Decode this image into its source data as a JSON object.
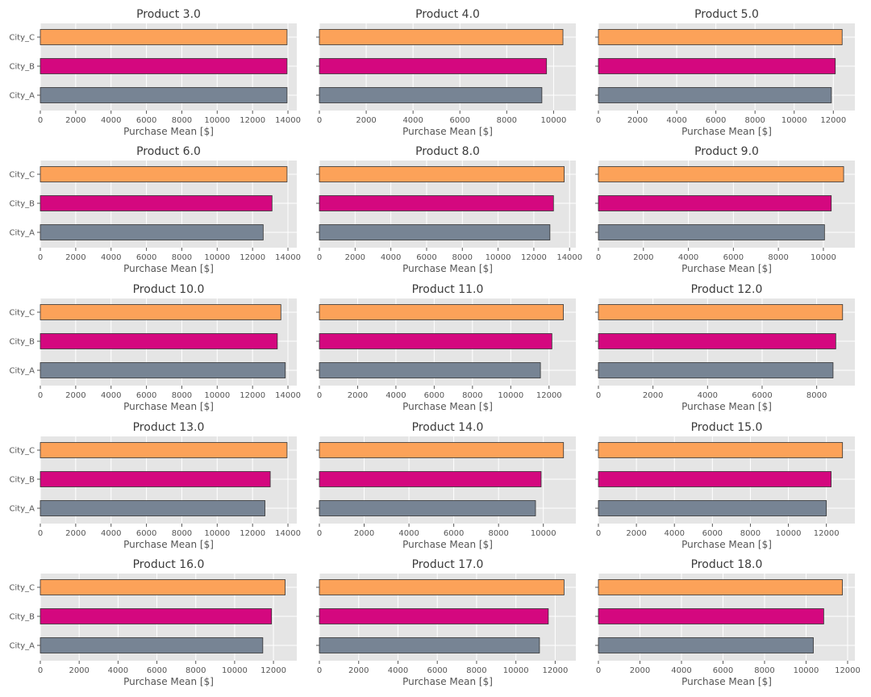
{
  "figure": {
    "xlabel": "Purchase Mean [$]",
    "categories": [
      "City_A",
      "City_B",
      "City_C"
    ],
    "category_colors": {
      "City_A": "#778494",
      "City_B": "#d4087f",
      "City_C": "#fca259"
    },
    "background": "#e5e5e5",
    "grid": true
  },
  "chart_data": [
    {
      "type": "bar",
      "orientation": "horizontal",
      "title": "Product 3.0",
      "xlabel": "Purchase Mean [$]",
      "categories": [
        "City_A",
        "City_B",
        "City_C"
      ],
      "values": [
        13950,
        13950,
        13950
      ],
      "xlim": [
        0,
        14500
      ],
      "xticks": [
        0,
        2000,
        4000,
        6000,
        8000,
        10000,
        12000,
        14000
      ]
    },
    {
      "type": "bar",
      "orientation": "horizontal",
      "title": "Product 4.0",
      "xlabel": "Purchase Mean [$]",
      "categories": [
        "City_A",
        "City_B",
        "City_C"
      ],
      "values": [
        9500,
        9700,
        10400
      ],
      "xlim": [
        0,
        10950
      ],
      "xticks": [
        0,
        2000,
        4000,
        6000,
        8000,
        10000
      ]
    },
    {
      "type": "bar",
      "orientation": "horizontal",
      "title": "Product 5.0",
      "xlabel": "Purchase Mean [$]",
      "categories": [
        "City_A",
        "City_B",
        "City_C"
      ],
      "values": [
        11900,
        12100,
        12450
      ],
      "xlim": [
        0,
        13100
      ],
      "xticks": [
        0,
        2000,
        4000,
        6000,
        8000,
        10000,
        12000
      ]
    },
    {
      "type": "bar",
      "orientation": "horizontal",
      "title": "Product 6.0",
      "xlabel": "Purchase Mean [$]",
      "categories": [
        "City_A",
        "City_B",
        "City_C"
      ],
      "values": [
        12600,
        13100,
        13950
      ],
      "xlim": [
        0,
        14500
      ],
      "xticks": [
        0,
        2000,
        4000,
        6000,
        8000,
        10000,
        12000,
        14000
      ]
    },
    {
      "type": "bar",
      "orientation": "horizontal",
      "title": "Product 8.0",
      "xlabel": "Purchase Mean [$]",
      "categories": [
        "City_A",
        "City_B",
        "City_C"
      ],
      "values": [
        12900,
        13100,
        13700
      ],
      "xlim": [
        0,
        14350
      ],
      "xticks": [
        0,
        2000,
        4000,
        6000,
        8000,
        10000,
        12000,
        14000
      ]
    },
    {
      "type": "bar",
      "orientation": "horizontal",
      "title": "Product 9.0",
      "xlabel": "Purchase Mean [$]",
      "categories": [
        "City_A",
        "City_B",
        "City_C"
      ],
      "values": [
        10050,
        10350,
        10900
      ],
      "xlim": [
        0,
        11400
      ],
      "xticks": [
        0,
        2000,
        4000,
        6000,
        8000,
        10000
      ]
    },
    {
      "type": "bar",
      "orientation": "horizontal",
      "title": "Product 10.0",
      "xlabel": "Purchase Mean [$]",
      "categories": [
        "City_A",
        "City_B",
        "City_C"
      ],
      "values": [
        13850,
        13400,
        13600
      ],
      "xlim": [
        0,
        14500
      ],
      "xticks": [
        0,
        2000,
        4000,
        6000,
        8000,
        10000,
        12000,
        14000
      ]
    },
    {
      "type": "bar",
      "orientation": "horizontal",
      "title": "Product 11.0",
      "xlabel": "Purchase Mean [$]",
      "categories": [
        "City_A",
        "City_B",
        "City_C"
      ],
      "values": [
        11550,
        12150,
        12750
      ],
      "xlim": [
        0,
        13400
      ],
      "xticks": [
        0,
        2000,
        4000,
        6000,
        8000,
        10000,
        12000
      ]
    },
    {
      "type": "bar",
      "orientation": "horizontal",
      "title": "Product 12.0",
      "xlabel": "Purchase Mean [$]",
      "categories": [
        "City_A",
        "City_B",
        "City_C"
      ],
      "values": [
        8600,
        8700,
        8950
      ],
      "xlim": [
        0,
        9400
      ],
      "xticks": [
        0,
        2000,
        4000,
        6000,
        8000
      ]
    },
    {
      "type": "bar",
      "orientation": "horizontal",
      "title": "Product 13.0",
      "xlabel": "Purchase Mean [$]",
      "categories": [
        "City_A",
        "City_B",
        "City_C"
      ],
      "values": [
        12700,
        13000,
        13950
      ],
      "xlim": [
        0,
        14500
      ],
      "xticks": [
        0,
        2000,
        4000,
        6000,
        8000,
        10000,
        12000,
        14000
      ]
    },
    {
      "type": "bar",
      "orientation": "horizontal",
      "title": "Product 14.0",
      "xlabel": "Purchase Mean [$]",
      "categories": [
        "City_A",
        "City_B",
        "City_C"
      ],
      "values": [
        9650,
        9900,
        10900
      ],
      "xlim": [
        0,
        11450
      ],
      "xticks": [
        0,
        2000,
        4000,
        6000,
        8000,
        10000
      ]
    },
    {
      "type": "bar",
      "orientation": "horizontal",
      "title": "Product 15.0",
      "xlabel": "Purchase Mean [$]",
      "categories": [
        "City_A",
        "City_B",
        "City_C"
      ],
      "values": [
        12000,
        12250,
        12850
      ],
      "xlim": [
        0,
        13500
      ],
      "xticks": [
        0,
        2000,
        4000,
        6000,
        8000,
        10000,
        12000
      ]
    },
    {
      "type": "bar",
      "orientation": "horizontal",
      "title": "Product 16.0",
      "xlabel": "Purchase Mean [$]",
      "categories": [
        "City_A",
        "City_B",
        "City_C"
      ],
      "values": [
        11450,
        11900,
        12600
      ],
      "xlim": [
        0,
        13200
      ],
      "xticks": [
        0,
        2000,
        4000,
        6000,
        8000,
        10000,
        12000
      ]
    },
    {
      "type": "bar",
      "orientation": "horizontal",
      "title": "Product 17.0",
      "xlabel": "Purchase Mean [$]",
      "categories": [
        "City_A",
        "City_B",
        "City_C"
      ],
      "values": [
        11200,
        11650,
        12450
      ],
      "xlim": [
        0,
        13050
      ],
      "xticks": [
        0,
        2000,
        4000,
        6000,
        8000,
        10000,
        12000
      ]
    },
    {
      "type": "bar",
      "orientation": "horizontal",
      "title": "Product 18.0",
      "xlabel": "Purchase Mean [$]",
      "categories": [
        "City_A",
        "City_B",
        "City_C"
      ],
      "values": [
        10350,
        10850,
        11750
      ],
      "xlim": [
        0,
        12350
      ],
      "xticks": [
        0,
        2000,
        4000,
        6000,
        8000,
        10000,
        12000
      ]
    }
  ]
}
